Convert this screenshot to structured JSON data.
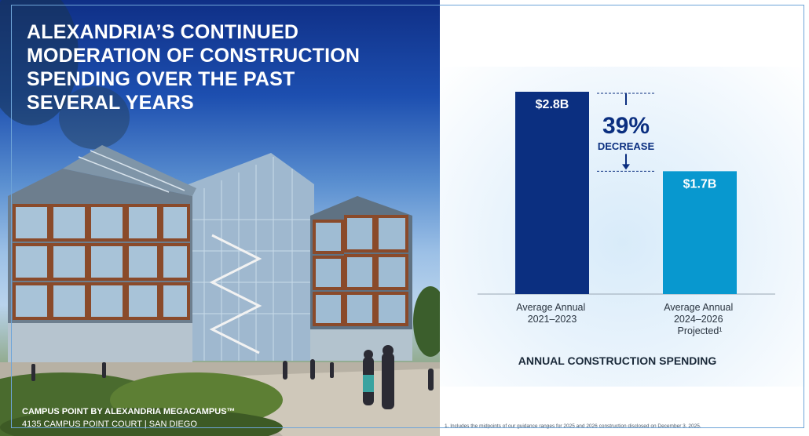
{
  "slide": {
    "title_lines": [
      "ALEXANDRIA’S CONTINUED",
      "MODERATION OF CONSTRUCTION",
      "SPENDING OVER THE PAST",
      "SEVERAL YEARS"
    ],
    "caption_line1": "CAMPUS POINT BY ALEXANDRIA MEGACAMPUS™",
    "caption_line2": "4135 CAMPUS POINT COURT | SAN DIEGO",
    "footnote": "1.   Includes the midpoints of our guidance ranges for 2025 and 2026 construction disclosed on December 3, 2025."
  },
  "chart_data": {
    "type": "bar",
    "title": "ANNUAL CONSTRUCTION SPENDING",
    "categories": [
      [
        "Average Annual",
        "2021–2023"
      ],
      [
        "Average Annual",
        "2024–2026",
        "Projected¹"
      ]
    ],
    "values": [
      2.8,
      1.7
    ],
    "value_labels": [
      "$2.8B",
      "$1.7B"
    ],
    "unit": "B",
    "bar_colors": [
      "#0b2f80",
      "#0898cf"
    ],
    "ylim": [
      0,
      2.8
    ],
    "grid": false,
    "annotation": {
      "percent": "39%",
      "text": "DECREASE"
    }
  },
  "colors": {
    "dark_blue": "#0b2f80",
    "light_blue": "#0898cf",
    "title_text": "#1b2a3a",
    "border": "#6ea4d8"
  }
}
